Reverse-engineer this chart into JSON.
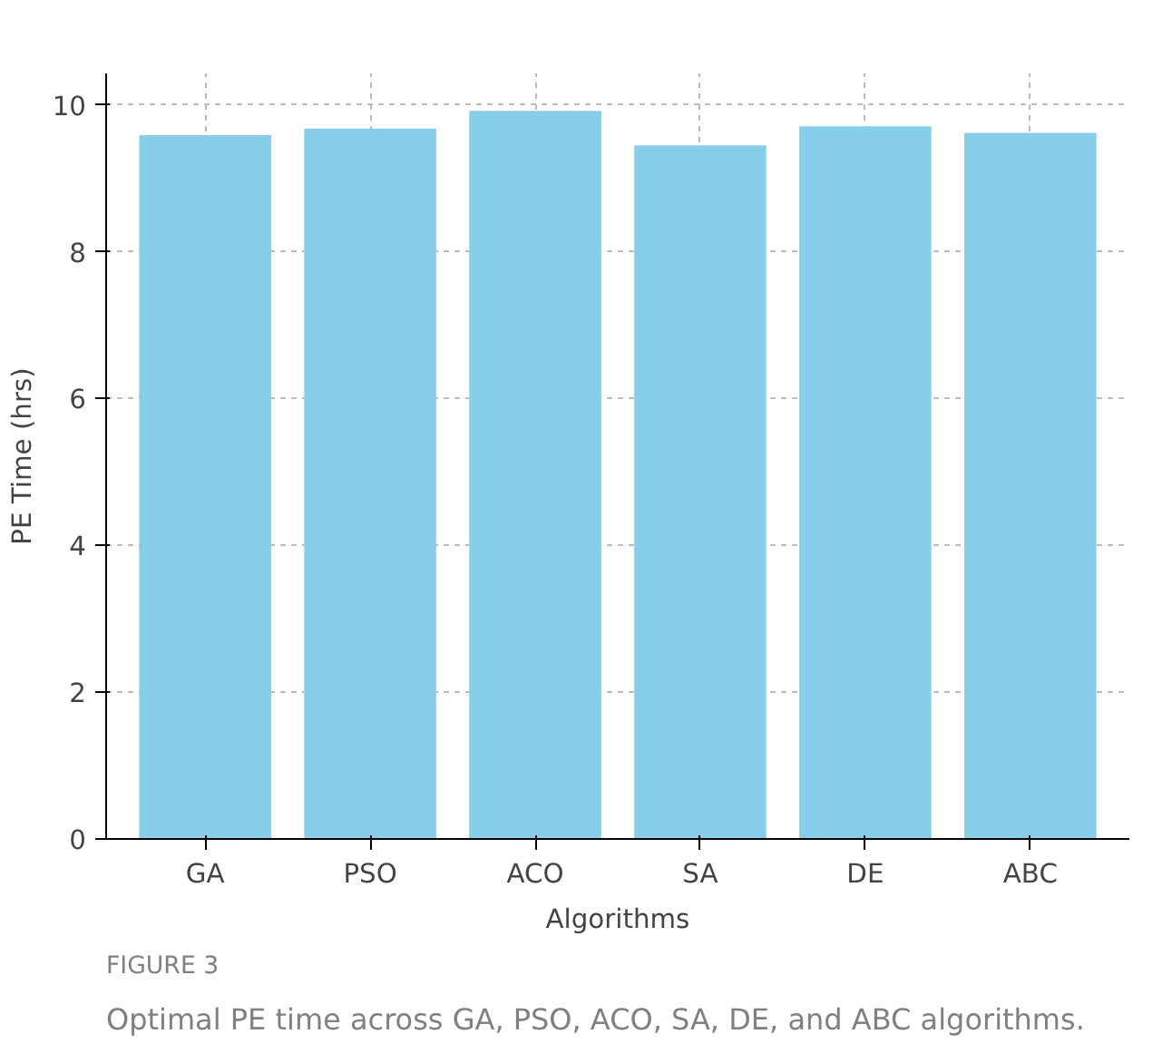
{
  "chart_data": {
    "type": "bar",
    "categories": [
      "GA",
      "PSO",
      "ACO",
      "SA",
      "DE",
      "ABC"
    ],
    "values": [
      9.59,
      9.68,
      9.92,
      9.45,
      9.71,
      9.62
    ],
    "color": "#87ceeb",
    "xlabel": "Algorithms",
    "ylabel": "PE Time (hrs)",
    "ylim": [
      0,
      10.43
    ],
    "yticks": [
      0,
      2,
      4,
      6,
      8,
      10
    ],
    "grid": true,
    "annotations": [
      "FIGURE 3",
      "Optimal PE time across GA, PSO, ACO, SA, DE, and ABC algorithms."
    ]
  }
}
